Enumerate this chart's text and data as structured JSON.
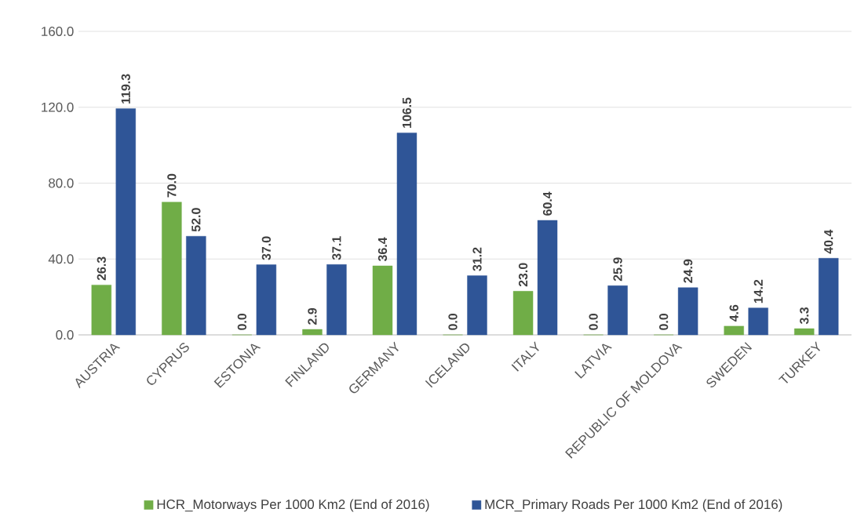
{
  "chart_data": {
    "type": "bar",
    "categories": [
      "AUSTRIA",
      "CYPRUS",
      "ESTONIA",
      "FINLAND",
      "GERMANY",
      "ICELAND",
      "ITALY",
      "LATVIA",
      "REPUBLIC OF MOLDOVA",
      "SWEDEN",
      "TURKEY"
    ],
    "series": [
      {
        "name": "HCR_Motorways Per 1000 Km2 (End of 2016)",
        "color": "#70ad47",
        "values": [
          26.3,
          70.0,
          0.0,
          2.9,
          36.4,
          0.0,
          23.0,
          0.0,
          0.0,
          4.6,
          3.3
        ],
        "value_labels": [
          "26.3",
          "70.0",
          "0.0",
          "2.9",
          "36.4",
          "0.0",
          "23.0",
          "0.0",
          "0.0",
          "4.6",
          "3.3"
        ]
      },
      {
        "name": "MCR_Primary Roads Per 1000 Km2 (End of 2016)",
        "color": "#2f5597",
        "values": [
          119.3,
          52.0,
          37.0,
          37.1,
          106.5,
          31.2,
          60.4,
          25.9,
          24.9,
          14.2,
          40.4
        ],
        "value_labels": [
          "119.3",
          "52.0",
          "37.0",
          "37.1",
          "106.5",
          "31.2",
          "60.4",
          "25.9",
          "24.9",
          "14.2",
          "40.4"
        ]
      }
    ],
    "ylim": [
      0,
      160
    ],
    "yticks": [
      {
        "value": 0,
        "label": "0.0"
      },
      {
        "value": 40,
        "label": "40.0"
      },
      {
        "value": 80,
        "label": "80.0"
      },
      {
        "value": 120,
        "label": "120.0"
      },
      {
        "value": 160,
        "label": "160.0"
      }
    ],
    "grid": "y",
    "legend": "bottom"
  }
}
